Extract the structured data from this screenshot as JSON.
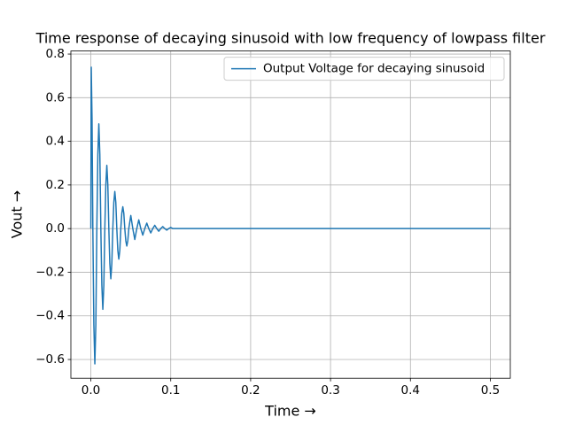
{
  "chart_data": {
    "type": "line",
    "title": "Time response of decaying sinusoid with low frequency of lowpass filter",
    "x_label": "Time →",
    "y_label": "Vout →",
    "x": [
      0,
      0.0005,
      0.0015,
      0.0025,
      0.00375,
      0.005,
      0.00625,
      0.0075,
      0.00875,
      0.01,
      0.01125,
      0.0125,
      0.01375,
      0.015,
      0.01625,
      0.0175,
      0.01875,
      0.02,
      0.02125,
      0.0225,
      0.02375,
      0.025,
      0.02625,
      0.0275,
      0.02875,
      0.03,
      0.03125,
      0.0325,
      0.03375,
      0.035,
      0.03625,
      0.0375,
      0.03875,
      0.04,
      0.04125,
      0.0425,
      0.04375,
      0.045,
      0.04625,
      0.0475,
      0.05,
      0.0525,
      0.055,
      0.0575,
      0.06,
      0.0625,
      0.065,
      0.0675,
      0.07,
      0.0725,
      0.075,
      0.0775,
      0.08,
      0.0825,
      0.085,
      0.0875,
      0.09,
      0.0925,
      0.095,
      0.0975,
      0.1,
      0.1025,
      0.5
    ],
    "series": [
      {
        "name": "Output Voltage for decaying sinusoid",
        "color": "#1f77b4",
        "values": [
          0,
          0.74,
          0.5,
          0,
          -0.44,
          -0.62,
          -0.44,
          0,
          0.34,
          0.48,
          0.34,
          0,
          -0.26,
          -0.37,
          -0.26,
          0,
          0.2,
          0.29,
          0.2,
          0,
          -0.16,
          -0.23,
          -0.16,
          0,
          0.12,
          0.17,
          0.12,
          0,
          -0.1,
          -0.14,
          -0.1,
          0,
          0.07,
          0.1,
          0.07,
          0,
          -0.056,
          -0.08,
          -0.056,
          0,
          0.06,
          0,
          -0.05,
          0,
          0.04,
          0,
          -0.03,
          0,
          0.025,
          0,
          -0.02,
          0,
          0.015,
          0,
          -0.012,
          0,
          0.009,
          0,
          -0.007,
          0,
          0.005,
          0,
          0
        ]
      }
    ],
    "xlim": [
      -0.025,
      0.525
    ],
    "ylim": [
      -0.686,
      0.814
    ],
    "xticks": [
      {
        "value": 0,
        "label": "0.0"
      },
      {
        "value": 0.1,
        "label": "0.1"
      },
      {
        "value": 0.2,
        "label": "0.2"
      },
      {
        "value": 0.3,
        "label": "0.3"
      },
      {
        "value": 0.4,
        "label": "0.4"
      },
      {
        "value": 0.5,
        "label": "0.5"
      }
    ],
    "yticks": [
      {
        "value": -0.6,
        "label": "−0.6"
      },
      {
        "value": -0.4,
        "label": "−0.4"
      },
      {
        "value": -0.2,
        "label": "−0.2"
      },
      {
        "value": 0,
        "label": "0.0"
      },
      {
        "value": 0.2,
        "label": "0.2"
      },
      {
        "value": 0.4,
        "label": "0.4"
      },
      {
        "value": 0.6,
        "label": "0.6"
      },
      {
        "value": 0.8,
        "label": "0.8"
      }
    ],
    "grid": true,
    "legend": "upper right"
  }
}
